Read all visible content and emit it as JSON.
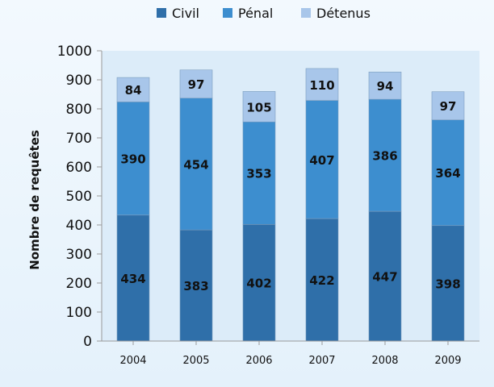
{
  "chart_data": {
    "type": "bar",
    "stacked": true,
    "categories": [
      "2004",
      "2005",
      "2006",
      "2007",
      "2008",
      "2009"
    ],
    "series": [
      {
        "name": "Civil",
        "values": [
          434,
          383,
          402,
          422,
          447,
          398
        ],
        "color": "#2f6fa9"
      },
      {
        "name": "Pénal",
        "values": [
          390,
          454,
          353,
          407,
          386,
          364
        ],
        "color": "#3d8ecf"
      },
      {
        "name": "Détenus",
        "values": [
          84,
          97,
          105,
          110,
          94,
          97
        ],
        "color": "#a8c6ea"
      }
    ],
    "title": "",
    "xlabel": "",
    "ylabel": "Nombre de requêtes",
    "ylim": [
      0,
      1000
    ],
    "yticks": [
      0,
      100,
      200,
      300,
      400,
      500,
      600,
      700,
      800,
      900,
      1000
    ],
    "grid": false,
    "legend": "top",
    "plot_background": "#dcecf9"
  }
}
